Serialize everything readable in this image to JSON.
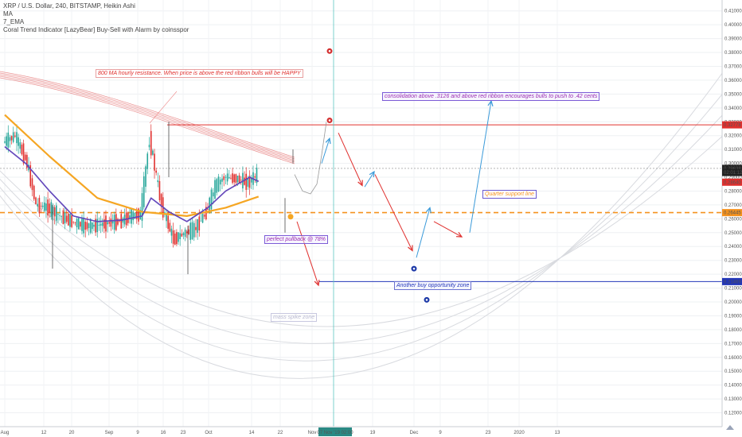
{
  "legend": {
    "symbol": "XRP / U.S. Dollar, 240, BITSTAMP, Heikin Ashi",
    "indicators": [
      "MA",
      "7_EMA",
      "Coral Trend Indicator [LazyBear] Buy-Sell with Alarm by coinsspor"
    ]
  },
  "annotations": {
    "ma_resistance": "800 MA hourly resistance. When price is above the red ribbon bulls will be HAPPY",
    "consolidation": "consolidation above .3126 and above red ribbon encourages bulls to push to .42 cents",
    "quarter_support": "Quarter support line",
    "perfect_pullback": "perfect pullback @ 78%",
    "buy_zone": "Another buy opportunity zone",
    "faint": "mass spike zone"
  },
  "colors": {
    "resistance": "#e0302e",
    "support": "#2236b8",
    "quarter": "#f5921e",
    "vertical": "#5cc6c0",
    "arrow_up": "#3a9ad9",
    "arrow_down": "#e0302e",
    "ema_blue": "#2840c8",
    "ma_orange": "#f5a623",
    "candle_up": "#26a69a",
    "candle_down": "#e0302e"
  },
  "chart_data": {
    "type": "line",
    "title": "XRP / U.S. Dollar, 240, BITSTAMP, Heikin Ashi",
    "xlabel": "",
    "ylabel": "",
    "ylim": [
      0.11,
      0.415
    ],
    "y_ticks": [
      0.12,
      0.13,
      0.14,
      0.15,
      0.16,
      0.17,
      0.18,
      0.19,
      0.2,
      0.21,
      0.22,
      0.23,
      0.24,
      0.25,
      0.26,
      0.27,
      0.28,
      0.29,
      0.3,
      0.31,
      0.32,
      0.33,
      0.34,
      0.35,
      0.36,
      0.37,
      0.38,
      0.39,
      0.4,
      0.41
    ],
    "x_ticks": [
      "Aug",
      "12",
      "20",
      "Sep",
      "9",
      "16",
      "23",
      "Oct",
      "14",
      "22",
      "Nov",
      "19",
      "Dec",
      "9",
      "23",
      "2020",
      "13"
    ],
    "crosshair_x_label": "07 Nov '19  02:00",
    "price_labels": [
      {
        "value": 0.32778,
        "text": "0.32778",
        "color": "#e0302e"
      },
      {
        "value": 0.29638,
        "text": "0.29638",
        "color": "#222222"
      },
      {
        "value": 0.2934,
        "text": "02:01:12",
        "color": "#222222"
      },
      {
        "value": 0.2864,
        "text": "0.28640",
        "color": "#e0302e"
      },
      {
        "value": 0.26445,
        "text": "0.26445",
        "color": "#f5921e"
      },
      {
        "value": 0.21469,
        "text": "0.21469",
        "color": "#2236b8"
      }
    ],
    "levels": {
      "resistance": 0.32778,
      "quarter_support": 0.26445,
      "buy_zone": 0.21469,
      "last_price": 0.29638
    },
    "series": [
      {
        "x": [
          "Aug",
          "Aug 5",
          "Aug 9",
          "Aug 12",
          "Aug 16",
          "Aug 20",
          "Aug 24",
          "Aug 28",
          "Sep",
          "Sep 5",
          "Sep 9",
          "Sep 13",
          "Sep 16",
          "Sep 19",
          "Sep 23",
          "Sep 27",
          "Oct",
          "Oct 4",
          "Oct 8",
          "Oct 11",
          "Oct 14",
          "Oct 18",
          "Oct 22",
          "Oct 25"
        ],
        "values": [
          0.315,
          0.32,
          0.3,
          0.27,
          0.268,
          0.262,
          0.258,
          0.255,
          0.255,
          0.257,
          0.258,
          0.262,
          0.263,
          0.318,
          0.27,
          0.245,
          0.25,
          0.252,
          0.265,
          0.283,
          0.29,
          0.289,
          0.286,
          0.292
        ]
      },
      {
        "x": [
          "Aug",
          "Aug 8",
          "Aug 16",
          "Aug 24",
          "Sep",
          "Sep 9",
          "Sep 16",
          "Sep 19",
          "Sep 25",
          "Oct",
          "Oct 8",
          "Oct 14",
          "Oct 22",
          "Oct 25"
        ],
        "values": [
          0.312,
          0.3,
          0.28,
          0.262,
          0.258,
          0.259,
          0.262,
          0.275,
          0.265,
          0.258,
          0.268,
          0.28,
          0.29,
          0.287
        ]
      },
      {
        "x": [
          "Aug",
          "Aug 16",
          "Sep",
          "Sep 16",
          "Oct",
          "Oct 14",
          "Oct 25"
        ],
        "values": [
          0.335,
          0.305,
          0.275,
          0.265,
          0.262,
          0.268,
          0.276
        ]
      }
    ],
    "projection": [
      0.292,
      0.28,
      0.278,
      0.285,
      0.306,
      0.33
    ],
    "forecast_arrows": [
      {
        "from": 0.258,
        "to": 0.212,
        "color": "#e0302e"
      },
      {
        "from": 0.3,
        "to": 0.318,
        "color": "#3a9ad9"
      },
      {
        "from": 0.322,
        "to": 0.284,
        "color": "#e0302e"
      },
      {
        "from": 0.283,
        "to": 0.294,
        "color": "#3a9ad9"
      },
      {
        "from": 0.292,
        "to": 0.237,
        "color": "#e0302e"
      },
      {
        "from": 0.232,
        "to": 0.268,
        "color": "#3a9ad9"
      },
      {
        "from": 0.258,
        "to": 0.247,
        "color": "#e0302e"
      },
      {
        "from": 0.25,
        "to": 0.345,
        "color": "#3a9ad9"
      }
    ]
  }
}
